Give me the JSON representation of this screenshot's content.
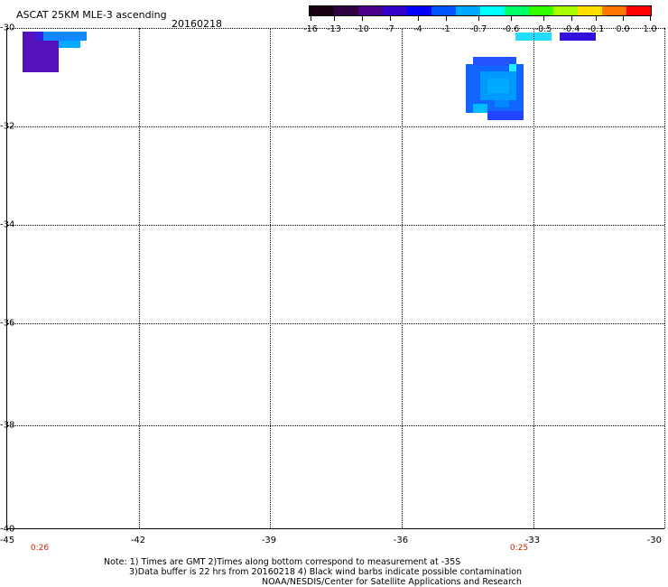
{
  "title": "ASCAT 25KM MLE-3 ascending",
  "date": "20160218",
  "map": {
    "lon_range": [
      -45,
      -30
    ],
    "lat_range": [
      -40,
      -30
    ],
    "y_ticks": [
      "-30",
      "-32",
      "-34",
      "-36",
      "-38",
      "-40"
    ],
    "x_ticks": [
      "-45",
      "-42",
      "-39",
      "-36",
      "-33",
      "-30"
    ],
    "grid": "dotted",
    "time_labels": [
      "0:26",
      "0:25"
    ]
  },
  "colorbar": {
    "labels": [
      "-16",
      "-13",
      "-10",
      "-7",
      "-4",
      "-1",
      "-0.7",
      "-0.6",
      "-0.5",
      "-0.4",
      "-0.1",
      "0.0",
      "1.0"
    ],
    "colors": [
      "#1a0010",
      "#300040",
      "#4a0088",
      "#3300cc",
      "#0000ff",
      "#0055ff",
      "#00aaff",
      "#00ffff",
      "#00ff66",
      "#33ff00",
      "#aaff00",
      "#ffdd00",
      "#ff7700",
      "#ff0000"
    ]
  },
  "legend_swatches": [
    {
      "name": "cyan-swatch",
      "color": "#22ddff"
    },
    {
      "name": "violet-swatch",
      "color": "#3311dd"
    }
  ],
  "data_cells": [
    {
      "color": "#5511bb"
    },
    {
      "color": "#2244ff"
    },
    {
      "color": "#0099ff"
    }
  ],
  "notes": {
    "line1": "Note: 1) Times are GMT 2)Times along bottom correspond to measurement at -35S",
    "line2": "3)Data buffer is 22 hrs from 20160218 4) Black wind barbs indicate possible contamination",
    "line3": "NOAA/NESDIS/Center for Satellite Applications and Research"
  }
}
